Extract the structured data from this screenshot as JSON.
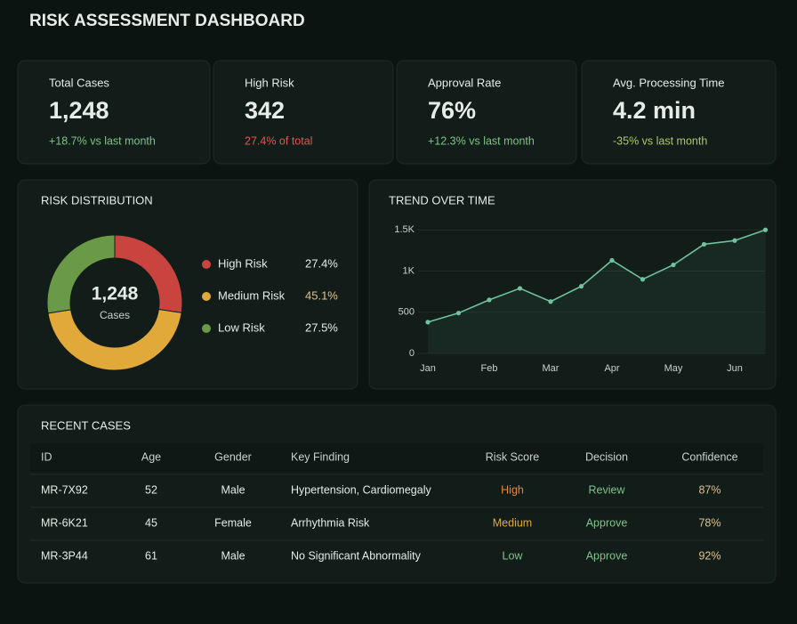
{
  "header": {
    "title": "RISK ASSESSMENT DASHBOARD"
  },
  "kpis": [
    {
      "label": "Total Cases",
      "value": "1,248",
      "delta": "+18.7% vs last month",
      "delta_color": "#7fc28a"
    },
    {
      "label": "High Risk",
      "value": "342",
      "delta": "27.4% of total",
      "delta_color": "#e0574f"
    },
    {
      "label": "Approval Rate",
      "value": "76%",
      "delta": "+12.3% vs last month",
      "delta_color": "#7fc28a"
    },
    {
      "label": "Avg. Processing Time",
      "value": "4.2 min",
      "delta": "-35% vs last month",
      "delta_color": "#a9c86a"
    }
  ],
  "risk_distribution": {
    "title": "RISK DISTRIBUTION",
    "center_value": "1,248",
    "center_label": "Cases",
    "chart_data": {
      "type": "pie",
      "donut": true,
      "categories": [
        "High Risk",
        "Medium Risk",
        "Low Risk"
      ],
      "values": [
        27.4,
        45.1,
        27.5
      ],
      "value_labels": [
        "27.4%",
        "45.1%",
        "27.5%"
      ],
      "colors": [
        "#c9443f",
        "#e0a93a",
        "#6a9a47"
      ]
    }
  },
  "trend": {
    "title": "TREND OVER TIME",
    "chart_data": {
      "type": "line",
      "categories": [
        "Jan",
        null,
        "Feb",
        null,
        "Mar",
        null,
        "Apr",
        null,
        "May",
        null,
        "Jun",
        null
      ],
      "values": [
        380,
        490,
        650,
        790,
        630,
        815,
        1130,
        900,
        1075,
        1325,
        1370,
        1500
      ],
      "color": "#6fc3a0",
      "ylim": [
        0,
        1600
      ],
      "yticks": [
        0,
        500,
        {
          "value": 1000,
          "label": "1K"
        },
        {
          "value": 1500,
          "label": "1.5K"
        }
      ]
    }
  },
  "recent_cases": {
    "title": "RECENT CASES",
    "columns": [
      "ID",
      "Age",
      "Gender",
      "Key Finding",
      "Risk Score",
      "Decision",
      "Confidence"
    ],
    "rows": [
      [
        "MR-7X92",
        "52",
        "Male",
        "Hypertension, Cardiomegaly",
        "High",
        "Review",
        "87%"
      ],
      [
        "MR-6K21",
        "45",
        "Female",
        "Arrhythmia Risk",
        "Medium",
        "Approve",
        "78%"
      ],
      [
        "MR-3P44",
        "61",
        "Male",
        "No Significant Abnormality",
        "Low",
        "Approve",
        "92%"
      ]
    ],
    "risk_colors": [
      "#e48a3a",
      "#e0a93a",
      "#7fc28a"
    ],
    "decision_color": "#7fc28a",
    "confidence_color": "#e0c08a"
  }
}
